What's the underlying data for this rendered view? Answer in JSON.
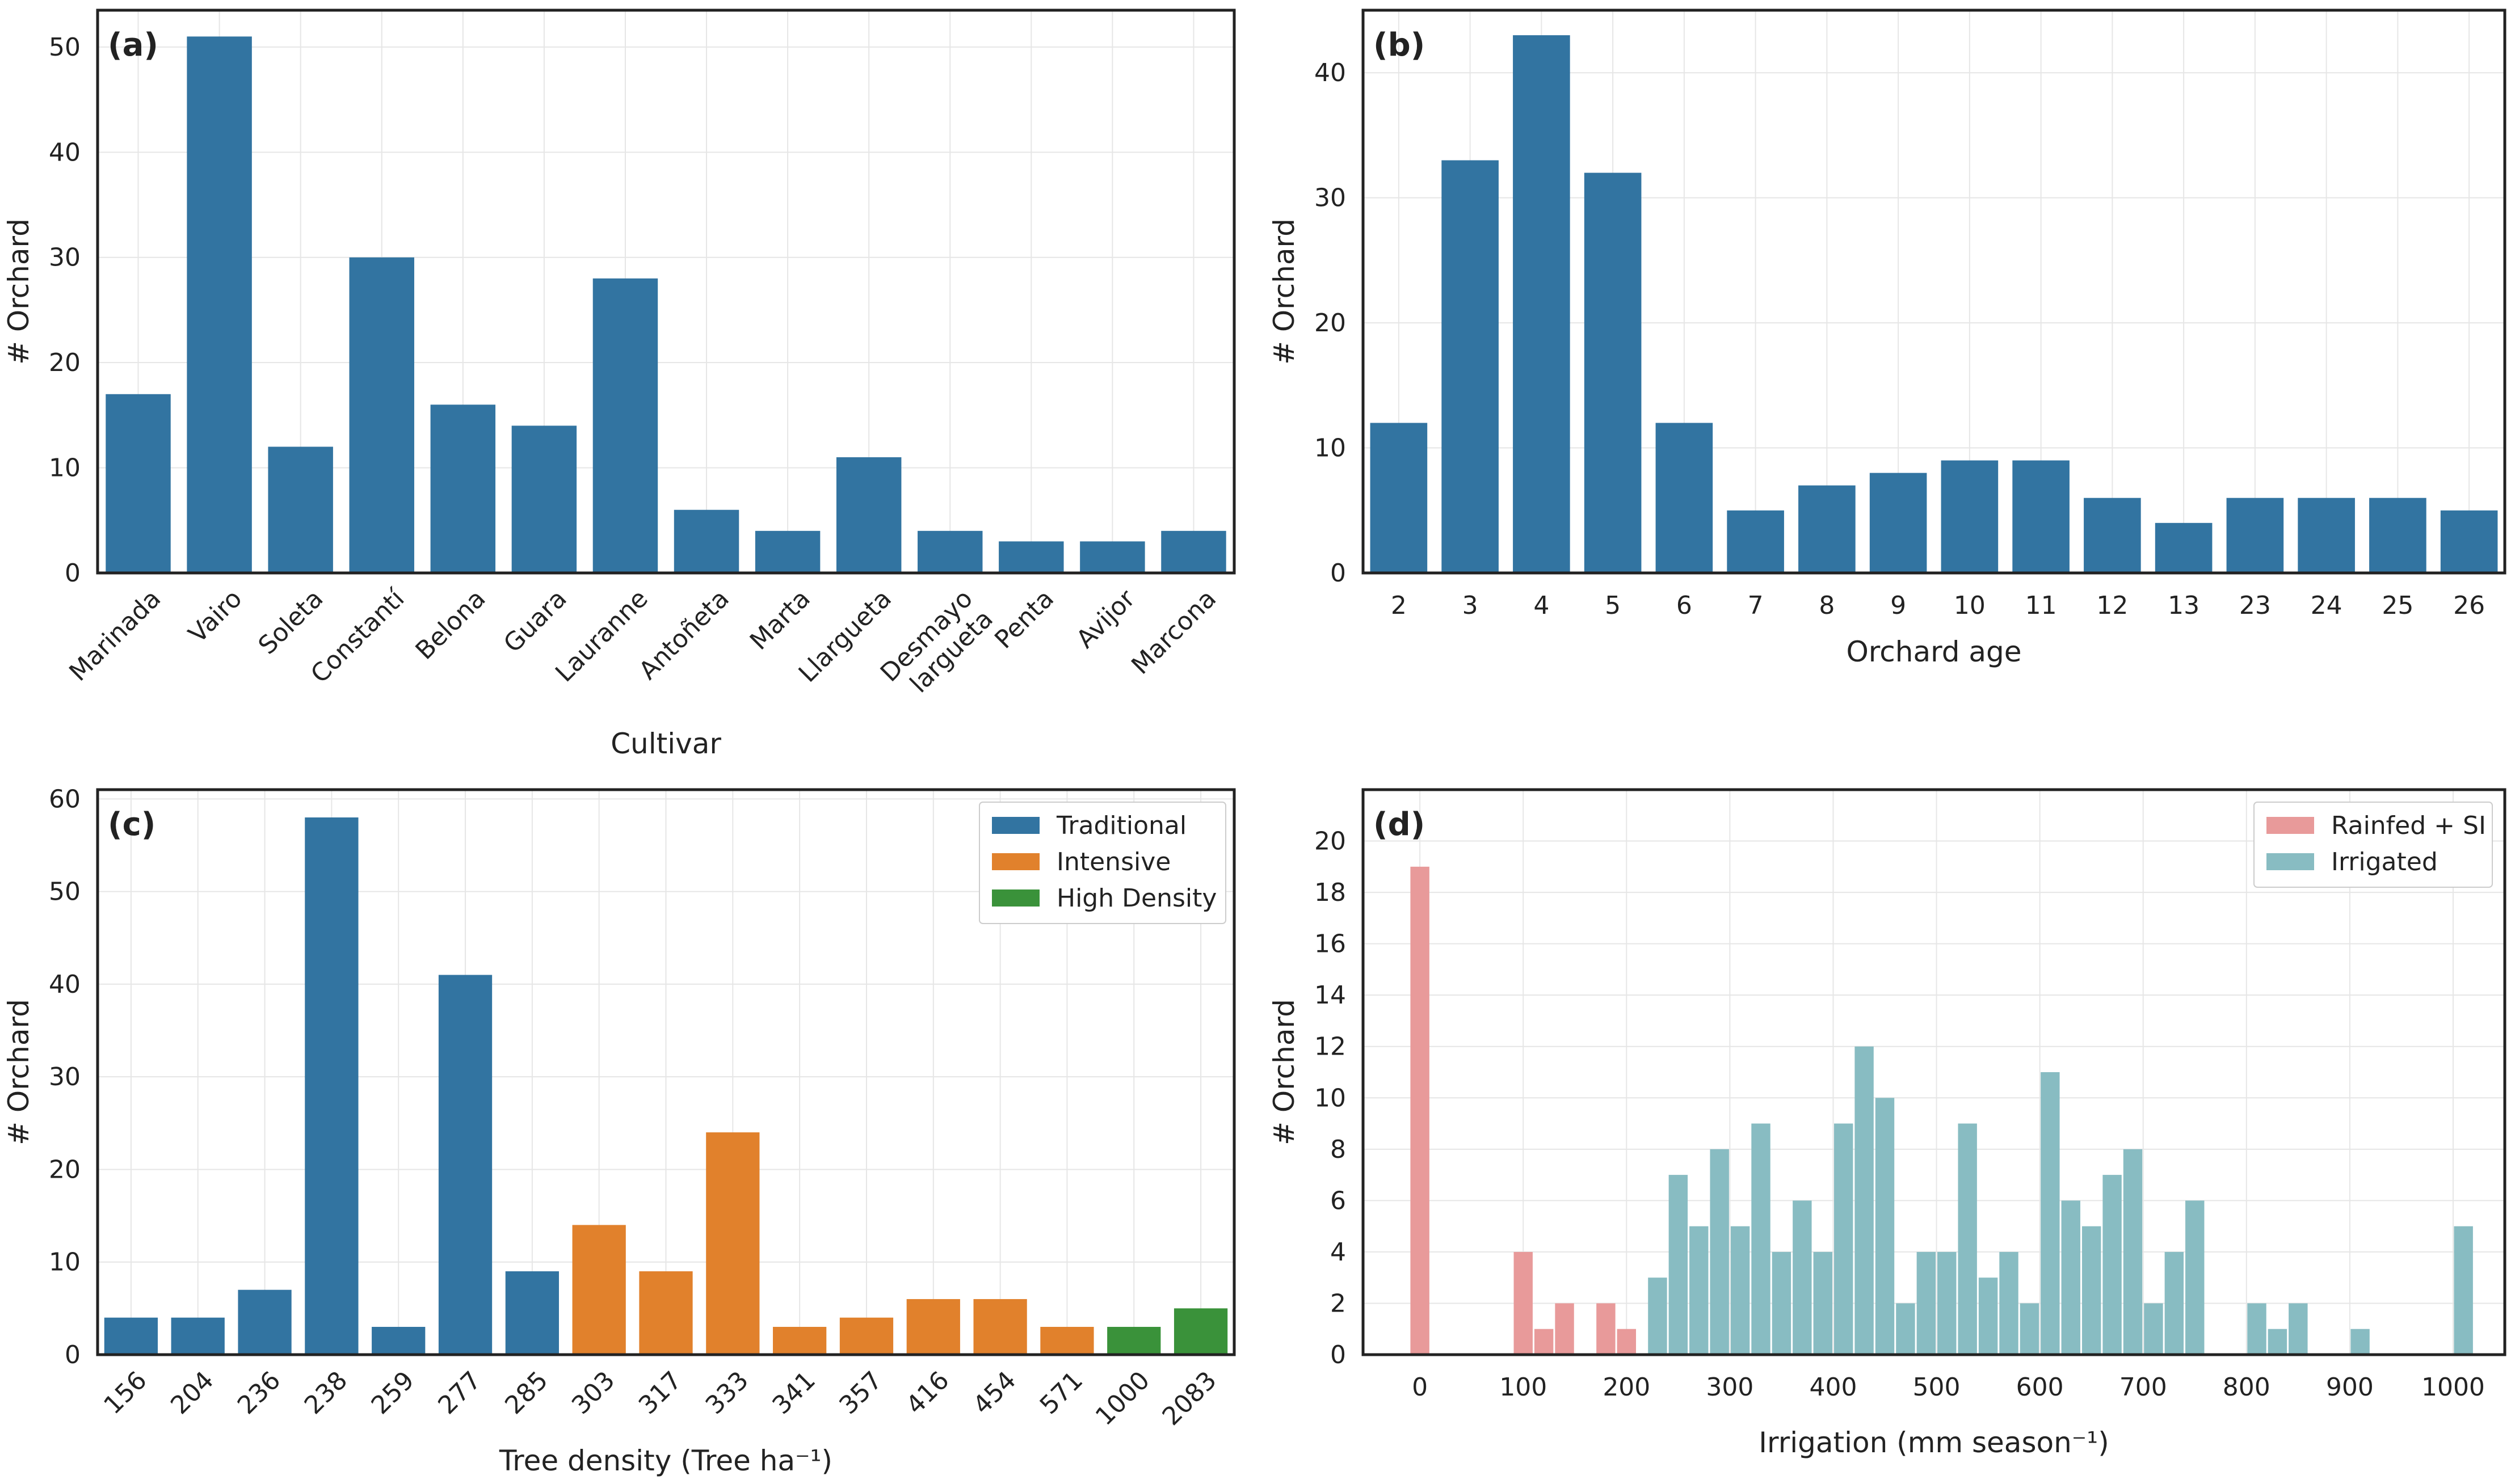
{
  "colors": {
    "blue": "#3274a1",
    "orange": "#e1812c",
    "green": "#3a923a",
    "rainfed": "#e89a9a",
    "irrigated": "#88bcc2",
    "grid": "#e6e6e6",
    "frame": "#222222"
  },
  "chart_data": [
    {
      "id": "a",
      "panel_label": "(a)",
      "type": "bar",
      "xlabel": "Cultivar",
      "ylabel": "# Orchard",
      "ylim": [
        0,
        53.5
      ],
      "yticks": [
        0,
        10,
        20,
        30,
        40,
        50
      ],
      "grid": true,
      "tick_rotation": "45-degrees",
      "categories": [
        "Marinada",
        "Vairo",
        "Soleta",
        "Constantí",
        "Belona",
        "Guara",
        "Lauranne",
        "Antoñeta",
        "Marta",
        "Llargueta",
        "Desmayo largueta",
        "Penta",
        "Avijor",
        "Marcona"
      ],
      "category_lines": [
        [
          "Marinada"
        ],
        [
          "Vairo"
        ],
        [
          "Soleta"
        ],
        [
          "Constantí"
        ],
        [
          "Belona"
        ],
        [
          "Guara"
        ],
        [
          "Lauranne"
        ],
        [
          "Antoñeta"
        ],
        [
          "Marta"
        ],
        [
          "Llargueta"
        ],
        [
          "Desmayo",
          "largueta"
        ],
        [
          "Penta"
        ],
        [
          "Avijor"
        ],
        [
          "Marcona"
        ]
      ],
      "values": [
        17,
        51,
        12,
        30,
        16,
        14,
        28,
        6,
        4,
        11,
        4,
        3,
        3,
        4
      ]
    },
    {
      "id": "b",
      "panel_label": "(b)",
      "type": "bar",
      "xlabel": "Orchard age",
      "ylabel": "# Orchard",
      "ylim": [
        0,
        45
      ],
      "yticks": [
        0,
        10,
        20,
        30,
        40
      ],
      "grid": true,
      "categories": [
        "2",
        "3",
        "4",
        "5",
        "6",
        "7",
        "8",
        "9",
        "10",
        "11",
        "12",
        "13",
        "23",
        "24",
        "25",
        "26"
      ],
      "values": [
        12,
        33,
        43,
        32,
        12,
        5,
        7,
        8,
        9,
        9,
        6,
        4,
        6,
        6,
        6,
        5
      ]
    },
    {
      "id": "c",
      "panel_label": "(c)",
      "type": "bar",
      "xlabel": "Tree density (Tree ha⁻¹)",
      "ylabel": "# Orchard",
      "ylim": [
        0,
        61
      ],
      "yticks": [
        0,
        10,
        20,
        30,
        40,
        50,
        60
      ],
      "grid": true,
      "tick_rotation": "45-degrees",
      "legend_position": "top-right",
      "categories": [
        "156",
        "204",
        "236",
        "238",
        "259",
        "277",
        "285",
        "303",
        "317",
        "333",
        "341",
        "357",
        "416",
        "454",
        "571",
        "1000",
        "2083"
      ],
      "values": [
        4,
        4,
        7,
        58,
        3,
        41,
        9,
        14,
        9,
        24,
        3,
        4,
        6,
        6,
        3,
        3,
        5
      ],
      "groups": [
        "Traditional",
        "Traditional",
        "Traditional",
        "Traditional",
        "Traditional",
        "Traditional",
        "Traditional",
        "Intensive",
        "Intensive",
        "Intensive",
        "Intensive",
        "Intensive",
        "Intensive",
        "Intensive",
        "Intensive",
        "High Density",
        "High Density"
      ],
      "legend": [
        "Traditional",
        "Intensive",
        "High Density"
      ]
    },
    {
      "id": "d",
      "panel_label": "(d)",
      "type": "histogram",
      "xlabel": "Irrigation (mm  season⁻¹)",
      "ylabel": "# Orchard",
      "xlim": [
        -55,
        1050
      ],
      "ylim": [
        0,
        22
      ],
      "xticks": [
        0,
        100,
        200,
        300,
        400,
        500,
        600,
        700,
        800,
        900,
        1000
      ],
      "yticks": [
        0,
        2,
        4,
        6,
        8,
        10,
        12,
        14,
        16,
        18,
        20
      ],
      "grid": true,
      "legend_position": "top-right",
      "legend": [
        "Rainfed + SI",
        "Irrigated"
      ],
      "series": [
        {
          "name": "Rainfed + SI",
          "bin_width": 20,
          "bins": [
            [
              0,
              19
            ],
            [
              100,
              4
            ],
            [
              120,
              1
            ],
            [
              140,
              2
            ],
            [
              180,
              2
            ],
            [
              200,
              1
            ]
          ]
        },
        {
          "name": "Irrigated",
          "bin_width": 20,
          "bins": [
            [
              230,
              3
            ],
            [
              250,
              7
            ],
            [
              270,
              5
            ],
            [
              290,
              8
            ],
            [
              310,
              5
            ],
            [
              330,
              9
            ],
            [
              350,
              4
            ],
            [
              370,
              6
            ],
            [
              390,
              4
            ],
            [
              410,
              9
            ],
            [
              430,
              12
            ],
            [
              450,
              10
            ],
            [
              470,
              2
            ],
            [
              490,
              4
            ],
            [
              510,
              4
            ],
            [
              530,
              9
            ],
            [
              550,
              3
            ],
            [
              570,
              4
            ],
            [
              590,
              2
            ],
            [
              610,
              11
            ],
            [
              630,
              6
            ],
            [
              650,
              5
            ],
            [
              670,
              7
            ],
            [
              690,
              8
            ],
            [
              710,
              2
            ],
            [
              730,
              4
            ],
            [
              750,
              6
            ],
            [
              810,
              2
            ],
            [
              830,
              1
            ],
            [
              850,
              2
            ],
            [
              910,
              1
            ],
            [
              1010,
              5
            ]
          ]
        }
      ]
    }
  ]
}
